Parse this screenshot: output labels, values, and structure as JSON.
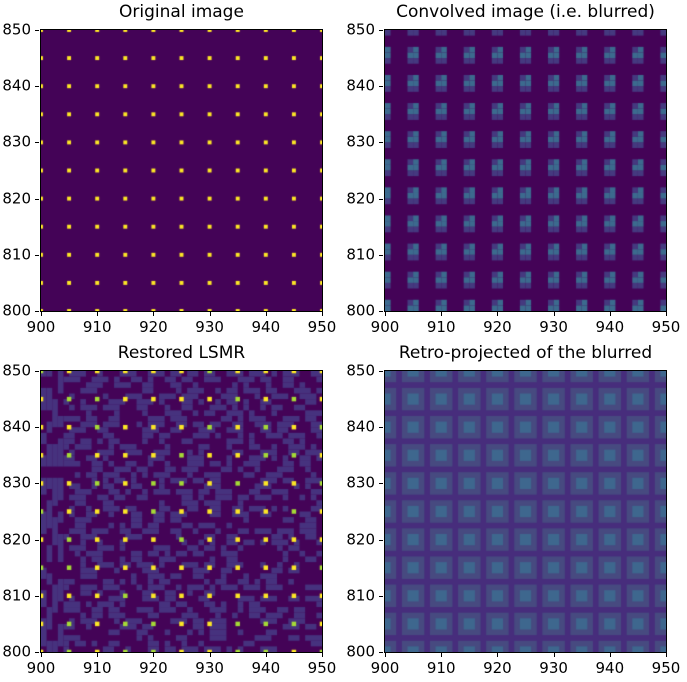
{
  "figure": {
    "background": "#ffffff",
    "text_color": "#000000",
    "colormap": "viridis"
  },
  "chart_data": [
    {
      "type": "heatmap",
      "title": "Original image",
      "x_range": [
        900,
        950
      ],
      "y_range": [
        800,
        850
      ],
      "x_ticks": [
        900,
        910,
        920,
        930,
        940,
        950
      ],
      "y_ticks": [
        800,
        810,
        820,
        830,
        840,
        850
      ],
      "grid": false,
      "pattern": {
        "kind": "dots",
        "background": "#440357",
        "dot_color": "#fde725",
        "spacing": 5,
        "dot_size": 0.7
      }
    },
    {
      "type": "heatmap",
      "title": "Convolved image (i.e. blurred)",
      "x_range": [
        900,
        950
      ],
      "y_range": [
        800,
        850
      ],
      "x_ticks": [
        900,
        910,
        920,
        930,
        940,
        950
      ],
      "y_ticks": [
        800,
        810,
        820,
        830,
        840,
        850
      ],
      "grid": false,
      "pattern": {
        "kind": "step-blobs",
        "background": "#440357",
        "core_color": "#3c6a8e",
        "halo_color": "#45397f",
        "spacing": 5,
        "core_cells": [
          [
            0,
            0
          ],
          [
            0,
            1
          ],
          [
            -1,
            0
          ]
        ],
        "halo_cells": [
          [
            -1,
            1
          ],
          [
            -1,
            -1
          ],
          [
            0,
            -1
          ]
        ]
      }
    },
    {
      "type": "heatmap",
      "title": "Restored LSMR",
      "x_range": [
        900,
        950
      ],
      "y_range": [
        800,
        850
      ],
      "x_ticks": [
        900,
        910,
        920,
        930,
        940,
        950
      ],
      "y_ticks": [
        800,
        810,
        820,
        830,
        840,
        850
      ],
      "grid": false,
      "pattern": {
        "kind": "noisy-dots",
        "background": "#440357",
        "streak_color": "#46327e",
        "dot_colors": [
          "#fde725",
          "#a5db36"
        ],
        "green_ratio": 0.3,
        "spacing": 5,
        "dot_size": 0.8,
        "noise_density": 0.4,
        "vertical_band_cols": 4,
        "seed": 7
      }
    },
    {
      "type": "heatmap",
      "title": "Retro-projected of the blurred",
      "x_range": [
        900,
        950
      ],
      "y_range": [
        800,
        850
      ],
      "x_ticks": [
        900,
        910,
        920,
        930,
        940,
        950
      ],
      "y_ticks": [
        800,
        810,
        820,
        830,
        840,
        850
      ],
      "grid": false,
      "pattern": {
        "kind": "soft-blobs",
        "background": "#472d7c",
        "core_color": "#3e678e",
        "halo_color": "#474a80",
        "spacing": 5,
        "core_offset": [
          -1,
          -1
        ],
        "core_size": 2,
        "halo_offset": [
          -2,
          -2
        ],
        "halo_size": 4
      }
    }
  ]
}
